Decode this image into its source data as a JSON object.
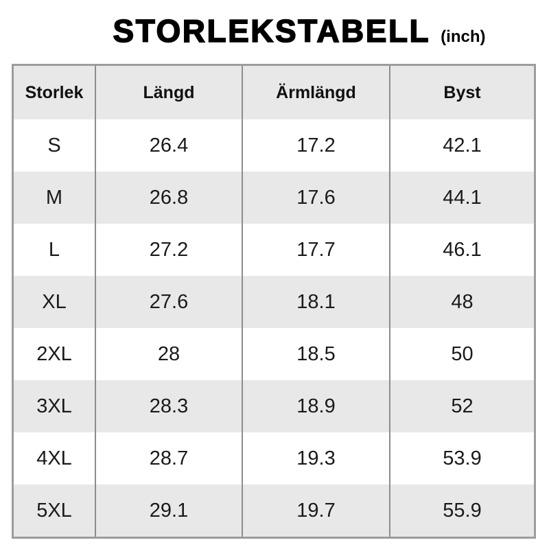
{
  "title": "STORLEKSTABELL",
  "unit": "(inch)",
  "colors": {
    "text": "#151515",
    "border": "#9c9c9c",
    "separator": "#8c8c8c",
    "stripe": "#e8e8e8"
  },
  "chart_data": {
    "type": "table",
    "title": "STORLEKSTABELL",
    "unit": "inch",
    "columns": [
      "Storlek",
      "Längd",
      "Ärmlängd",
      "Byst"
    ],
    "rows": [
      [
        "S",
        "26.4",
        "17.2",
        "42.1"
      ],
      [
        "M",
        "26.8",
        "17.6",
        "44.1"
      ],
      [
        "L",
        "27.2",
        "17.7",
        "46.1"
      ],
      [
        "XL",
        "27.6",
        "18.1",
        "48"
      ],
      [
        "2XL",
        "28",
        "18.5",
        "50"
      ],
      [
        "3XL",
        "28.3",
        "18.9",
        "52"
      ],
      [
        "4XL",
        "28.7",
        "19.3",
        "53.9"
      ],
      [
        "5XL",
        "29.1",
        "19.7",
        "55.9"
      ]
    ]
  }
}
